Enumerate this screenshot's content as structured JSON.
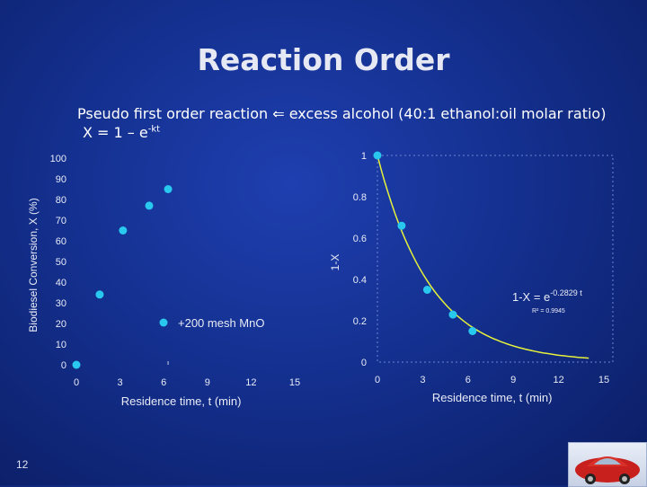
{
  "slide": {
    "title": "Reaction Order",
    "subtitle_line1": "Pseudo first order reaction  excess alcohol (40:1 ethanol:oil molar ratio)",
    "subtitle_line2_main": "X = 1 – e",
    "subtitle_line2_sup": "-kt",
    "page_number": "12"
  },
  "colors": {
    "background": "#14308f",
    "marker": "#29c8ee",
    "fit_curve": "#e6f23a",
    "text": "#e8ebf6"
  },
  "chart_data": [
    {
      "type": "scatter",
      "ylabel": "Biodiesel Conversion, X  (%)",
      "xlabel": "Residence time, t (min)",
      "xlim": [
        0,
        15
      ],
      "ylim": [
        0,
        100
      ],
      "x_ticks": [
        "0",
        "3",
        "6",
        "9",
        "12",
        "15"
      ],
      "y_ticks": [
        "0",
        "10",
        "20",
        "30",
        "40",
        "50",
        "60",
        "70",
        "80",
        "90",
        "100"
      ],
      "legend": {
        "label": "+200 mesh MnO",
        "position": "bottom-right"
      },
      "series": [
        {
          "x": [
            0,
            1.6,
            3.2,
            5.0,
            6.3
          ],
          "y": [
            0,
            34,
            65,
            77,
            85
          ]
        }
      ]
    },
    {
      "type": "scatter",
      "ylabel": "1-X",
      "xlabel": "Residence time, t (min)",
      "xlim": [
        0,
        15
      ],
      "ylim": [
        0,
        1
      ],
      "x_ticks": [
        "0",
        "3",
        "6",
        "9",
        "12",
        "15"
      ],
      "y_ticks": [
        "0",
        "0.2",
        "0.4",
        "0.6",
        "0.8",
        "1"
      ],
      "series": [
        {
          "x": [
            0,
            1.6,
            3.3,
            5.0,
            6.3
          ],
          "y": [
            1.0,
            0.66,
            0.35,
            0.23,
            0.15
          ]
        }
      ],
      "fit": {
        "label_main": "1-X = e",
        "label_sup": "-0.2829 t",
        "r_squared": "R² = 0.9945",
        "k": 0.2829
      }
    }
  ]
}
